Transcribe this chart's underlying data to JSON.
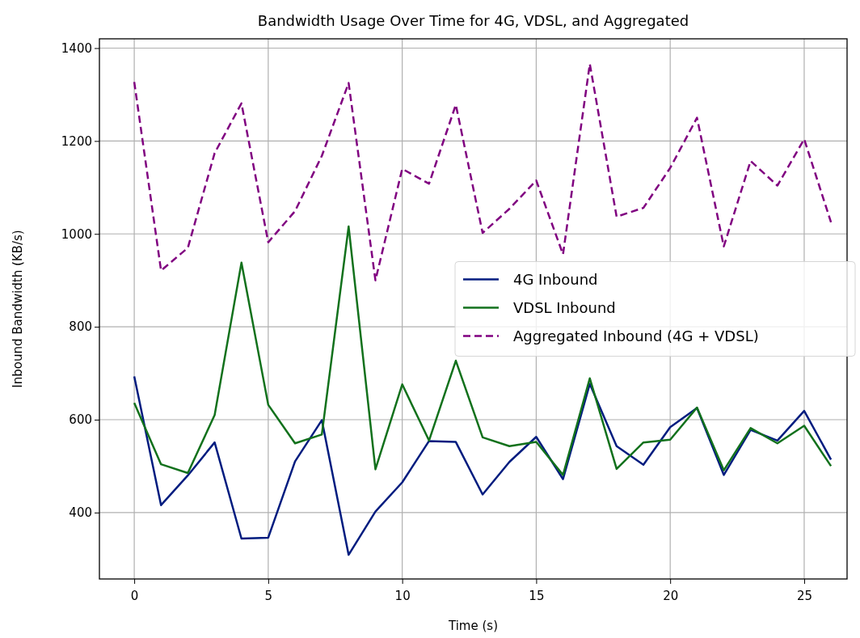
{
  "chart_data": {
    "type": "line",
    "title": "Bandwidth Usage Over Time for 4G, VDSL, and Aggregated",
    "xlabel": "Time (s)",
    "ylabel": "Inbound Bandwidth (KB/s)",
    "x": [
      0,
      1,
      2,
      3,
      4,
      5,
      6,
      7,
      8,
      9,
      10,
      11,
      12,
      13,
      14,
      15,
      16,
      17,
      18,
      19,
      20,
      21,
      22,
      23,
      24,
      25,
      26
    ],
    "xlim": [
      -1.3,
      26.6
    ],
    "xticks": [
      0,
      5,
      10,
      15,
      20,
      25
    ],
    "ylim": [
      257,
      1420
    ],
    "yticks": [
      400,
      600,
      800,
      1000,
      1200,
      1400
    ],
    "grid": true,
    "legend": "right",
    "series": [
      {
        "name": "4G Inbound",
        "color": "#001c7f",
        "line_style": "solid",
        "values": [
          693,
          416,
          480,
          551,
          344,
          346,
          510,
          599,
          309,
          402,
          465,
          554,
          552,
          439,
          509,
          563,
          472,
          677,
          543,
          503,
          584,
          625,
          481,
          578,
          555,
          619,
          514
        ]
      },
      {
        "name": "VDSL Inbound",
        "color": "#12711c",
        "line_style": "solid",
        "values": [
          636,
          504,
          485,
          610,
          938,
          632,
          549,
          568,
          1016,
          493,
          676,
          555,
          727,
          562,
          543,
          552,
          481,
          689,
          494,
          551,
          557,
          626,
          491,
          582,
          549,
          587,
          500
        ]
      },
      {
        "name": "Aggregated Inbound (4G + VDSL)",
        "color": "#800080",
        "line_style": "dashed",
        "values": [
          1327,
          921,
          970,
          1174,
          1281,
          982,
          1049,
          1168,
          1325,
          900,
          1140,
          1108,
          1278,
          1002,
          1054,
          1115,
          956,
          1366,
          1037,
          1056,
          1142,
          1250,
          973,
          1157,
          1104,
          1204,
          1025
        ]
      }
    ]
  }
}
